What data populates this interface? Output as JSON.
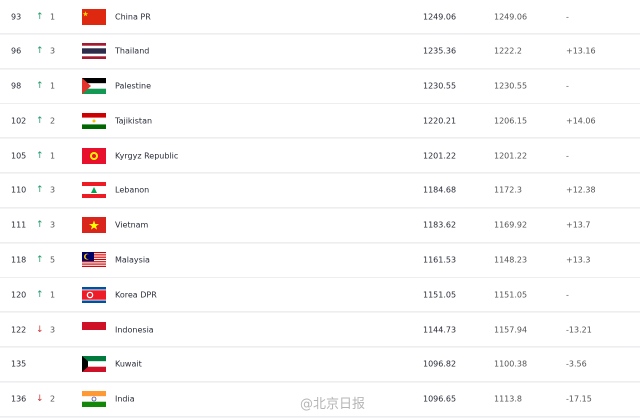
{
  "rows": [
    {
      "rank": "93",
      "dir": "up",
      "change": "1",
      "country": "China PR",
      "flag": "china",
      "points": "1249.06",
      "previous": "1249.06",
      "diff": "-"
    },
    {
      "rank": "96",
      "dir": "up",
      "change": "3",
      "country": "Thailand",
      "flag": "thailand",
      "points": "1235.36",
      "previous": "1222.2",
      "diff": "+13.16"
    },
    {
      "rank": "98",
      "dir": "up",
      "change": "1",
      "country": "Palestine",
      "flag": "palestine",
      "points": "1230.55",
      "previous": "1230.55",
      "diff": "-"
    },
    {
      "rank": "102",
      "dir": "up",
      "change": "2",
      "country": "Tajikistan",
      "flag": "tajikistan",
      "points": "1220.21",
      "previous": "1206.15",
      "diff": "+14.06"
    },
    {
      "rank": "105",
      "dir": "up",
      "change": "1",
      "country": "Kyrgyz Republic",
      "flag": "kyrgyz",
      "points": "1201.22",
      "previous": "1201.22",
      "diff": "-"
    },
    {
      "rank": "110",
      "dir": "up",
      "change": "3",
      "country": "Lebanon",
      "flag": "lebanon",
      "points": "1184.68",
      "previous": "1172.3",
      "diff": "+12.38"
    },
    {
      "rank": "111",
      "dir": "up",
      "change": "3",
      "country": "Vietnam",
      "flag": "vietnam",
      "points": "1183.62",
      "previous": "1169.92",
      "diff": "+13.7"
    },
    {
      "rank": "118",
      "dir": "up",
      "change": "5",
      "country": "Malaysia",
      "flag": "malaysia",
      "points": "1161.53",
      "previous": "1148.23",
      "diff": "+13.3"
    },
    {
      "rank": "120",
      "dir": "up",
      "change": "1",
      "country": "Korea DPR",
      "flag": "korea-dpr",
      "points": "1151.05",
      "previous": "1151.05",
      "diff": "-"
    },
    {
      "rank": "122",
      "dir": "down",
      "change": "3",
      "country": "Indonesia",
      "flag": "indonesia",
      "points": "1144.73",
      "previous": "1157.94",
      "diff": "-13.21"
    },
    {
      "rank": "135",
      "dir": "none",
      "change": "-",
      "country": "Kuwait",
      "flag": "kuwait",
      "points": "1096.82",
      "previous": "1100.38",
      "diff": "-3.56"
    },
    {
      "rank": "136",
      "dir": "down",
      "change": "2",
      "country": "India",
      "flag": "india",
      "points": "1096.65",
      "previous": "1113.8",
      "diff": "-17.15"
    }
  ],
  "icons": {
    "up": "arrow-up-icon",
    "down": "arrow-down-icon"
  },
  "colors": {
    "up": "#1f9a6a",
    "down": "#d0373c"
  },
  "watermark": "@北京日报"
}
